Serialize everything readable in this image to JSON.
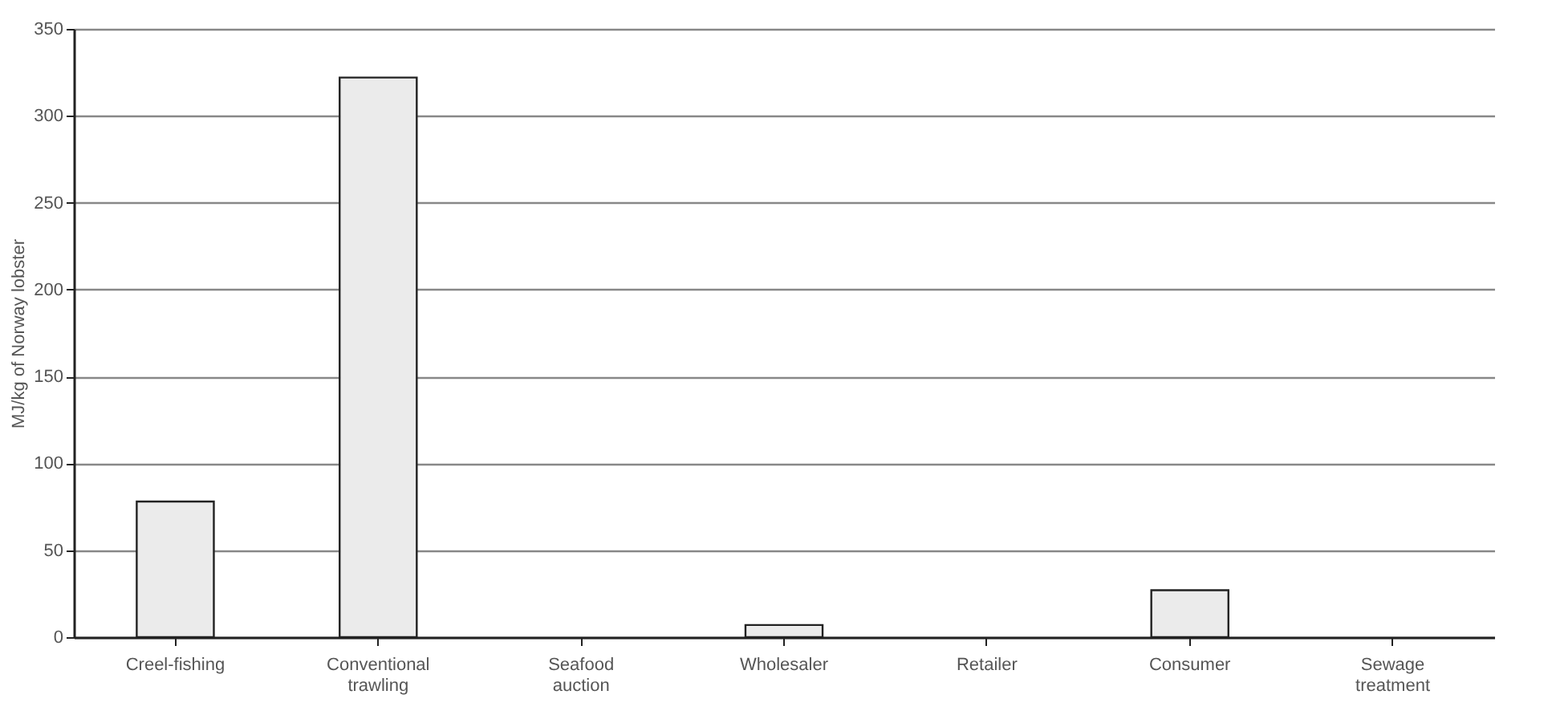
{
  "chart_data": {
    "type": "bar",
    "ylabel": "MJ/kg of Norway lobster",
    "categories": [
      "Creel-fishing",
      "Conventional trawling",
      "Seafood auction",
      "Wholesaler",
      "Retailer",
      "Consumer",
      "Sewage treatment"
    ],
    "values": [
      78,
      322,
      0,
      7,
      0,
      27,
      0
    ],
    "color": "#ebebeb",
    "ylim": [
      0,
      350
    ],
    "yticks": [
      0,
      50,
      100,
      150,
      200,
      250,
      300,
      350
    ],
    "grid": "y"
  }
}
